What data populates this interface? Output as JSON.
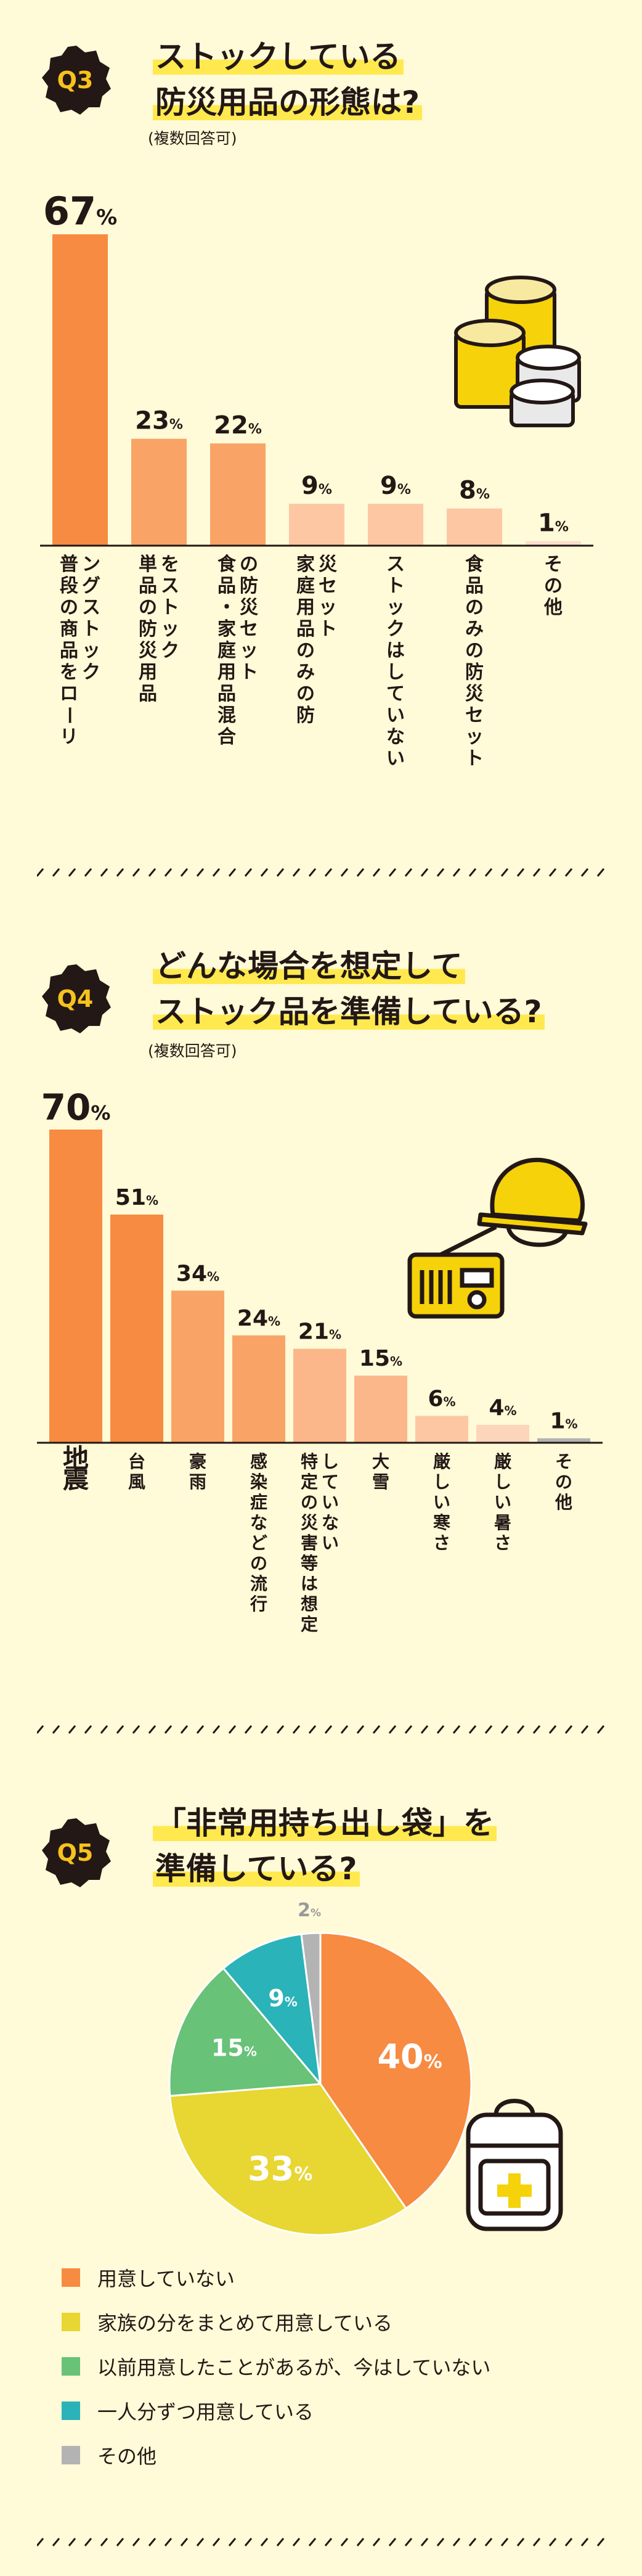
{
  "q3": {
    "badge": "Q3",
    "title_lines": [
      "ストックしている",
      "防災用品の形態は?"
    ],
    "note": "(複数回答可)"
  },
  "q4": {
    "badge": "Q4",
    "title_lines": [
      "どんな場合を想定して",
      "ストック品を準備している?"
    ],
    "note": "(複数回答可)"
  },
  "q5": {
    "badge": "Q5",
    "title_lines": [
      "「非常用持ち出し袋」を",
      "準備している?"
    ]
  },
  "chart_data": [
    {
      "type": "bar",
      "unit": "%",
      "categories": [
        "普段の商品をローリングストック",
        "単品の防災用品をストック",
        "食品・家庭用品混合の防災セット",
        "家庭用品のみの防災セット",
        "ストックはしていない",
        "食品のみの防災セット",
        "その他"
      ],
      "values": [
        67,
        23,
        22,
        9,
        9,
        8,
        1
      ],
      "colors": [
        "#f68b41",
        "#f9a466",
        "#f9a466",
        "#fdc7a3",
        "#fdc7a3",
        "#fdc7a3",
        "#fde0cc"
      ],
      "ylim": [
        0,
        67
      ]
    },
    {
      "type": "bar",
      "unit": "%",
      "categories": [
        "地震",
        "台風",
        "豪雨",
        "感染症などの流行",
        "特定の災害等は想定していない",
        "大雪",
        "厳しい寒さ",
        "厳しい暑さ",
        "その他"
      ],
      "values": [
        70,
        51,
        34,
        24,
        21,
        15,
        6,
        4,
        1
      ],
      "colors": [
        "#f68b41",
        "#f68b41",
        "#f9a466",
        "#f9a466",
        "#fbb78a",
        "#fbb78a",
        "#fdc7a3",
        "#fdd5ba",
        "#b3b3b3"
      ],
      "ylim": [
        0,
        70
      ]
    },
    {
      "type": "pie",
      "unit": "%",
      "slices": [
        {
          "label": "用意していない",
          "value": 40,
          "color": "#f68b41"
        },
        {
          "label": "家族の分をまとめて用意している",
          "value": 33,
          "color": "#e8d632"
        },
        {
          "label": "以前用意したことがあるが、今はしていない",
          "value": 15,
          "color": "#68c277"
        },
        {
          "label": "一人分ずつ用意している",
          "value": 9,
          "color": "#2ab3b8"
        },
        {
          "label": "その他",
          "value": 2,
          "color": "#b3b3b3"
        }
      ]
    }
  ],
  "icons": [
    "food-cans-icon",
    "radio-icon",
    "helmet-icon",
    "emergency-bag-icon"
  ]
}
